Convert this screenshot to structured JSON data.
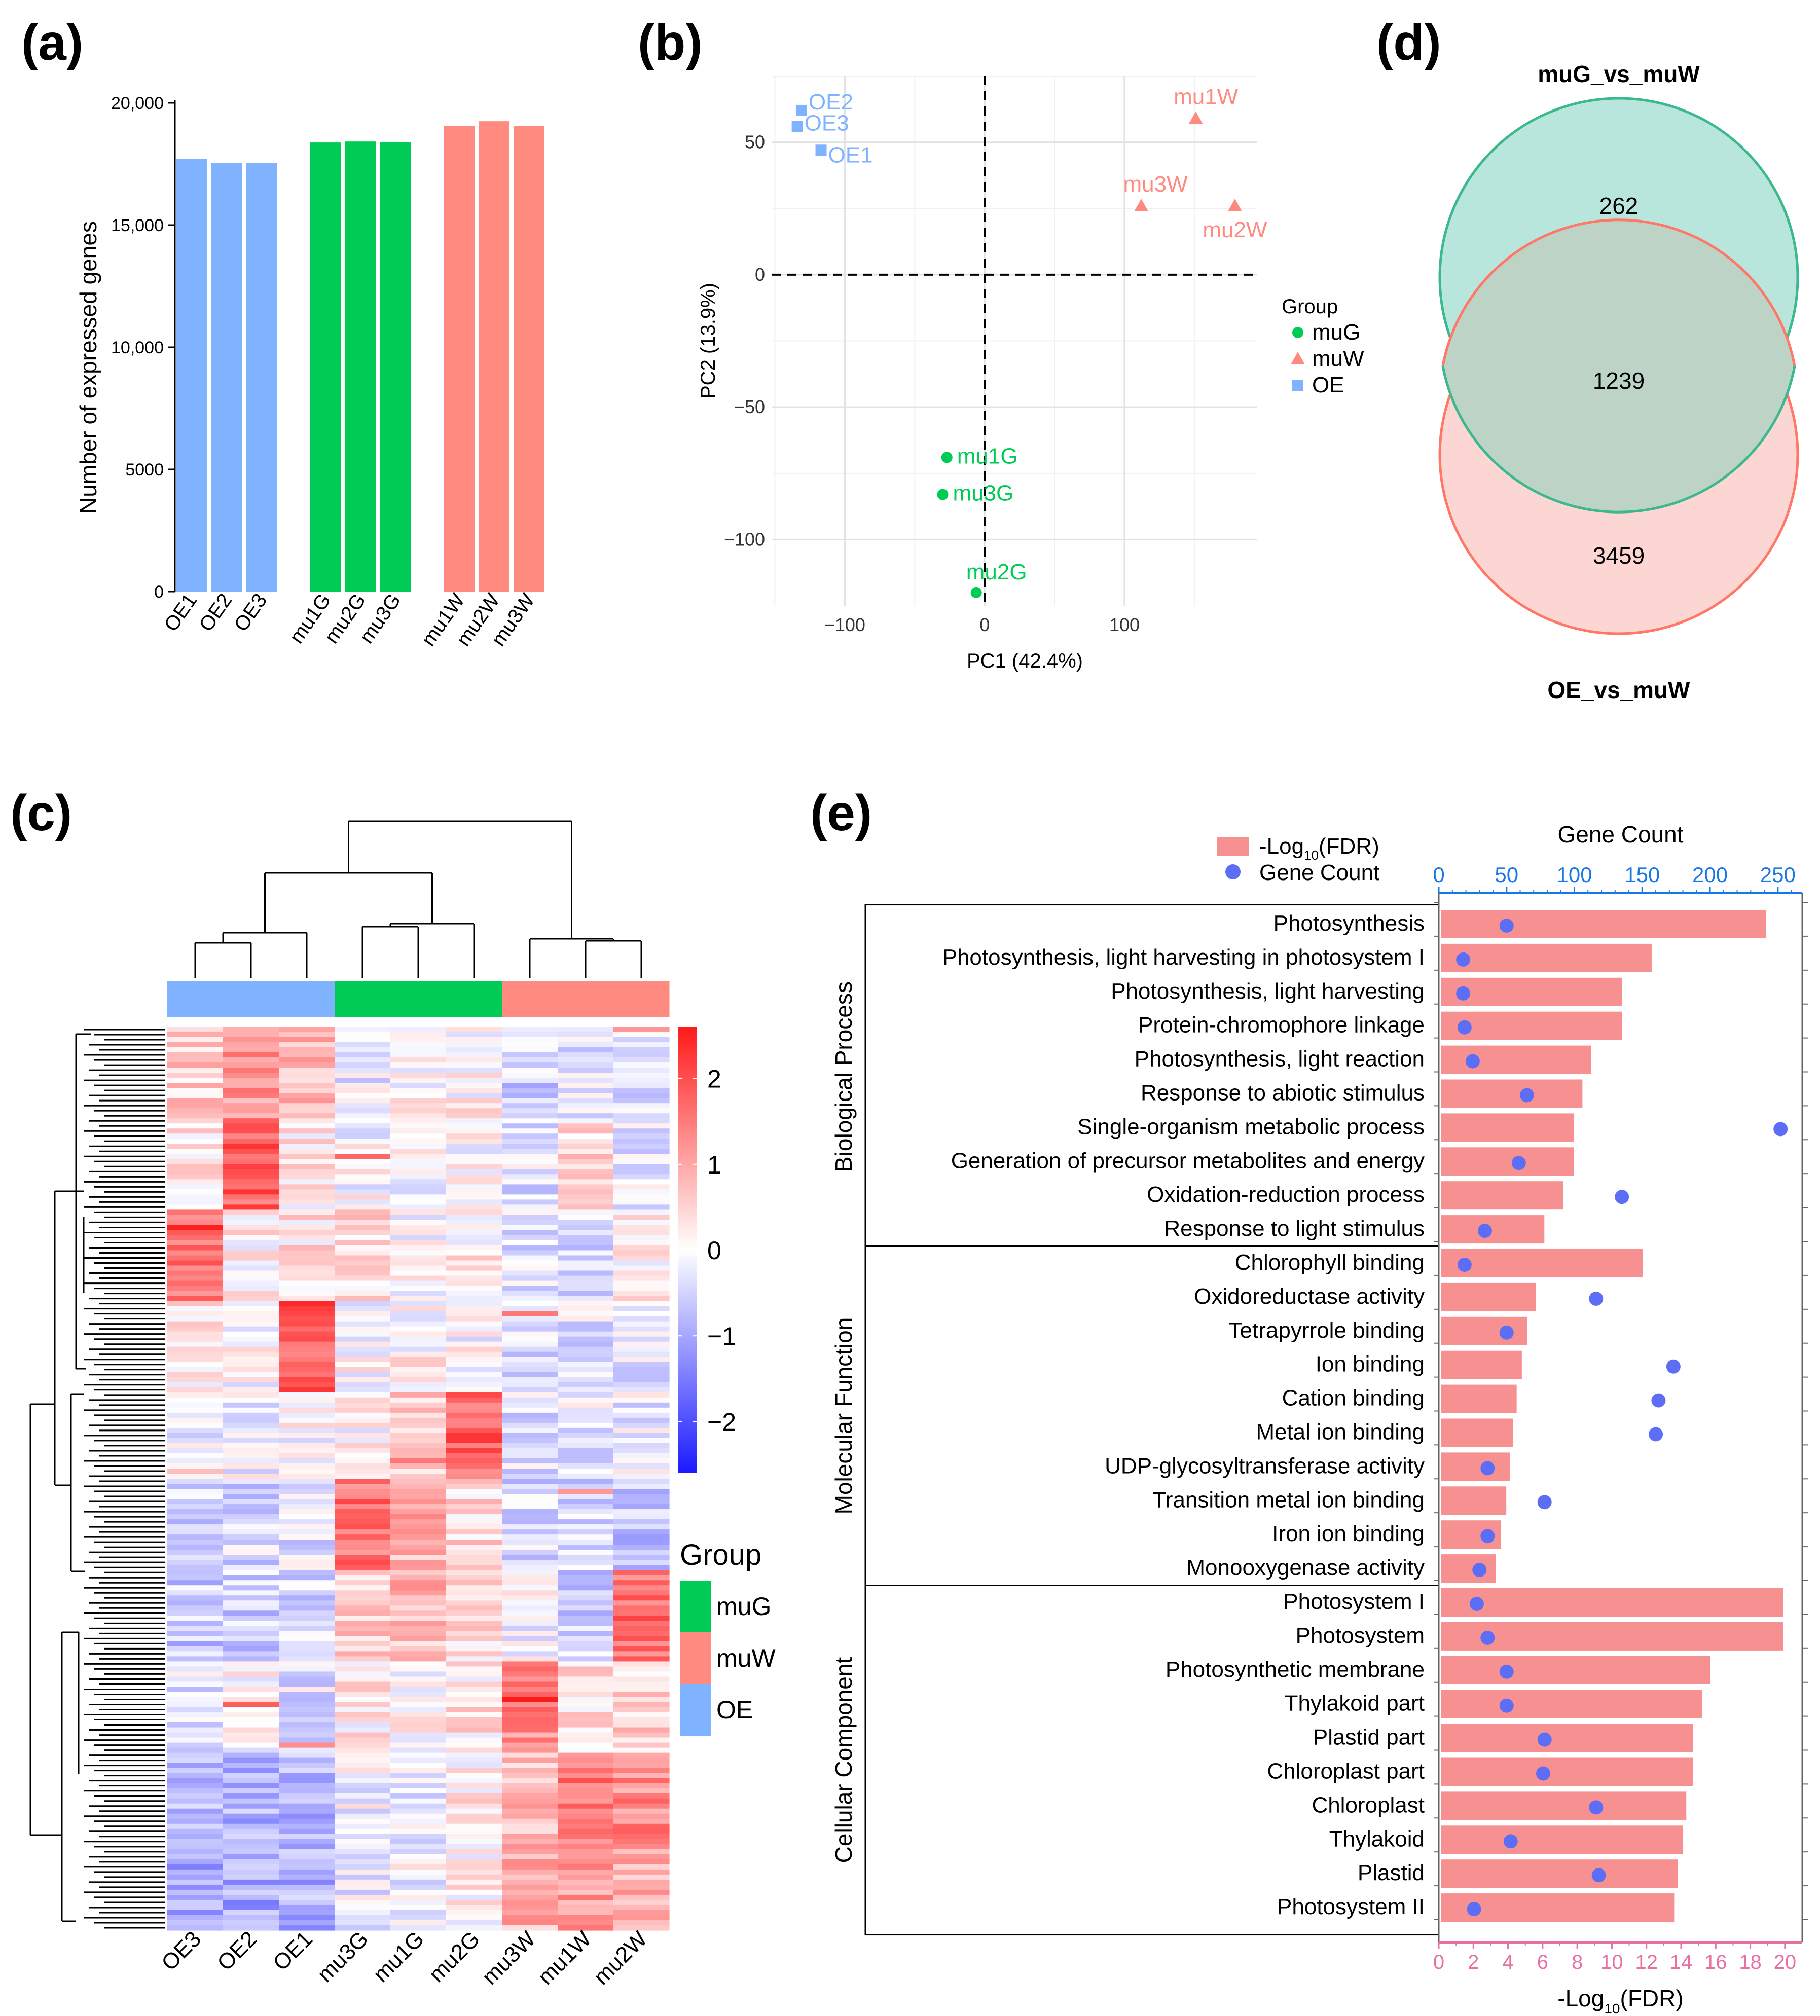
{
  "colors": {
    "OE": "#80b3ff",
    "muG": "#00cc55",
    "muW": "#ff8b80",
    "venn_top": "#b9e6dc",
    "venn_top_edge": "#3cb88e",
    "venn_bottom": "#fccfcb",
    "venn_bottom_edge": "#ff7766",
    "overlap": "#bcd3c6",
    "fdr_bar": "#f79191",
    "gene_dot": "#5b6ef5",
    "gene_axis": "#1a78e6",
    "fdr_axis": "#e870a0"
  },
  "panels": [
    "(a)",
    "(b)",
    "(c)",
    "(d)",
    "(e)"
  ],
  "chart_data": [
    {
      "panel": "(a)",
      "type": "bar",
      "ylabel": "Number of expressed genes",
      "xlabel": "",
      "ylim": [
        0,
        20000
      ],
      "ytick_values": [
        0,
        5000,
        10000,
        15000,
        20000
      ],
      "ytick_labels": [
        "0",
        "5000",
        "10,000",
        "15,000",
        "20,000"
      ],
      "categories": [
        "OE1",
        "OE2",
        "OE3",
        "mu1G",
        "mu2G",
        "mu3G",
        "mu1W",
        "mu2W",
        "mu3W"
      ],
      "groups": [
        "OE",
        "OE",
        "OE",
        "muG",
        "muG",
        "muG",
        "muW",
        "muW",
        "muW"
      ],
      "values": [
        17700,
        17550,
        17550,
        18380,
        18420,
        18400,
        19050,
        19250,
        19050
      ]
    },
    {
      "panel": "(b)",
      "type": "scatter",
      "xlabel": "PC1 (42.4%)",
      "ylabel": "PC2 (13.9%)",
      "xlim": [
        -152,
        195
      ],
      "ylim": [
        -125,
        75
      ],
      "xtick_values": [
        -100,
        0,
        100
      ],
      "xtick_labels": [
        "−100",
        "0",
        "100"
      ],
      "ytick_values": [
        -100,
        -50,
        0,
        50
      ],
      "ytick_labels": [
        "−100",
        "−50",
        "0",
        "50"
      ],
      "legend_title": "Group",
      "legend": [
        "muG",
        "muW",
        "OE"
      ],
      "points": [
        {
          "label": "OE2",
          "group": "OE",
          "x": -131,
          "y": 62
        },
        {
          "label": "OE3",
          "group": "OE",
          "x": -134,
          "y": 56
        },
        {
          "label": "OE1",
          "group": "OE",
          "x": -117,
          "y": 47
        },
        {
          "label": "mu1W",
          "group": "muW",
          "x": 151,
          "y": 59
        },
        {
          "label": "mu3W",
          "group": "muW",
          "x": 112,
          "y": 26
        },
        {
          "label": "mu2W",
          "group": "muW",
          "x": 179,
          "y": 26
        },
        {
          "label": "mu1G",
          "group": "muG",
          "x": -27,
          "y": -69
        },
        {
          "label": "mu3G",
          "group": "muG",
          "x": -30,
          "y": -83
        },
        {
          "label": "mu2G",
          "group": "muG",
          "x": -6,
          "y": -120
        }
      ]
    },
    {
      "panel": "(c)",
      "type": "heatmap",
      "columns": [
        "OE3",
        "OE2",
        "OE1",
        "mu3G",
        "mu1G",
        "mu2G",
        "mu3W",
        "mu1W",
        "mu2W"
      ],
      "column_groups": [
        "OE",
        "OE",
        "OE",
        "muG",
        "muG",
        "muG",
        "muW",
        "muW",
        "muW"
      ],
      "color_scale": {
        "min": -2.6,
        "max": 2.6,
        "low": "#1a1aff",
        "mid": "#ffffff",
        "high": "#ff1a1a"
      },
      "scale_ticks": [
        2,
        1,
        0,
        -1,
        -2
      ],
      "scale_tick_labels": [
        "2",
        "1",
        "0",
        "−1",
        "−2"
      ],
      "legend_title": "Group",
      "legend": [
        "muG",
        "muW",
        "OE"
      ],
      "profile_blocks": [
        [
          0.6,
          1.2,
          0.8,
          -0.2,
          0.0,
          0.1,
          -0.5,
          -0.3,
          -0.4
        ],
        [
          0.3,
          1.8,
          0.2,
          0.0,
          -0.1,
          0.0,
          -0.3,
          0.4,
          -0.2
        ],
        [
          1.6,
          0.2,
          0.3,
          0.4,
          0.0,
          0.2,
          -0.3,
          -0.5,
          0.2
        ],
        [
          0.2,
          0.0,
          1.9,
          0.0,
          0.1,
          0.0,
          -0.4,
          -0.3,
          -0.2
        ],
        [
          -0.2,
          -0.1,
          0.0,
          0.1,
          0.5,
          1.8,
          -0.3,
          -0.2,
          -0.2
        ],
        [
          -0.5,
          -0.4,
          -0.3,
          1.6,
          0.9,
          0.4,
          -0.4,
          -0.4,
          -0.6
        ],
        [
          -0.6,
          -0.5,
          -0.4,
          0.5,
          0.8,
          0.3,
          -0.1,
          -0.5,
          1.6
        ],
        [
          -0.3,
          0.1,
          -0.3,
          0.2,
          0.0,
          0.3,
          1.3,
          0.3,
          0.5
        ],
        [
          -0.8,
          -0.9,
          -0.8,
          -0.1,
          -0.3,
          0.2,
          0.7,
          1.5,
          1.3
        ],
        [
          -1.0,
          -1.0,
          -0.9,
          -0.2,
          -0.1,
          0.1,
          0.9,
          1.2,
          0.9
        ]
      ]
    },
    {
      "panel": "(d)",
      "type": "venn",
      "sets": [
        {
          "name": "muG_vs_muW",
          "only": 262
        },
        {
          "name": "OE_vs_muW",
          "only": 3459
        }
      ],
      "intersection": 1239
    },
    {
      "panel": "(e)",
      "type": "bar",
      "x_top_label": "Gene Count",
      "x_bottom_label": "-Log10(FDR)",
      "x_bottom_label_main": "-Log",
      "x_bottom_label_sub": "10",
      "x_bottom_label_tail": "(FDR)",
      "fdr_ticks": [
        0,
        2,
        4,
        6,
        8,
        10,
        12,
        14,
        16,
        18,
        20
      ],
      "fdr_range": [
        0,
        21
      ],
      "count_ticks": [
        0,
        50,
        100,
        150,
        200,
        250
      ],
      "count_range": [
        0,
        268
      ],
      "legend": {
        "bar_main": "-Log",
        "bar_sub": "10",
        "bar_tail": "(FDR)",
        "dot": "Gene Count"
      },
      "groups": [
        {
          "name": "Biological Process",
          "terms": [
            {
              "term": "Photosynthesis",
              "fdr": 18.9,
              "count": 50
            },
            {
              "term": "Photosynthesis, light harvesting in photosystem I",
              "fdr": 12.3,
              "count": 18
            },
            {
              "term": "Photosynthesis, light harvesting",
              "fdr": 10.6,
              "count": 18
            },
            {
              "term": "Protein-chromophore linkage",
              "fdr": 10.6,
              "count": 19
            },
            {
              "term": "Photosynthesis, light reaction",
              "fdr": 8.8,
              "count": 25
            },
            {
              "term": "Response to abiotic stimulus",
              "fdr": 8.3,
              "count": 65
            },
            {
              "term": "Single-organism metabolic process",
              "fdr": 7.8,
              "count": 252
            },
            {
              "term": "Generation of precursor metabolites and energy",
              "fdr": 7.8,
              "count": 59
            },
            {
              "term": "Oxidation-reduction process",
              "fdr": 7.2,
              "count": 135
            },
            {
              "term": "Response to light stimulus",
              "fdr": 6.1,
              "count": 34
            }
          ]
        },
        {
          "name": "Molecular Function",
          "terms": [
            {
              "term": "Chlorophyll binding",
              "fdr": 11.8,
              "count": 19
            },
            {
              "term": "Oxidoreductase activity",
              "fdr": 5.6,
              "count": 116
            },
            {
              "term": "Tetrapyrrole binding",
              "fdr": 5.1,
              "count": 50
            },
            {
              "term": "Ion binding",
              "fdr": 4.8,
              "count": 173
            },
            {
              "term": "Cation binding",
              "fdr": 4.5,
              "count": 162
            },
            {
              "term": "Metal ion binding",
              "fdr": 4.3,
              "count": 160
            },
            {
              "term": "UDP-glycosyltransferase activity",
              "fdr": 4.1,
              "count": 36
            },
            {
              "term": "Transition metal ion binding",
              "fdr": 3.9,
              "count": 78
            },
            {
              "term": "Iron ion binding",
              "fdr": 3.6,
              "count": 36
            },
            {
              "term": "Monooxygenase activity",
              "fdr": 3.3,
              "count": 30
            }
          ]
        },
        {
          "name": "Cellular Component",
          "terms": [
            {
              "term": "Photosystem I",
              "fdr": 19.9,
              "count": 28
            },
            {
              "term": "Photosystem",
              "fdr": 19.9,
              "count": 36
            },
            {
              "term": "Photosynthetic membrane",
              "fdr": 15.7,
              "count": 50
            },
            {
              "term": "Thylakoid part",
              "fdr": 15.2,
              "count": 50
            },
            {
              "term": "Plastid part",
              "fdr": 14.7,
              "count": 78
            },
            {
              "term": "Chloroplast part",
              "fdr": 14.7,
              "count": 77
            },
            {
              "term": "Chloroplast",
              "fdr": 14.3,
              "count": 116
            },
            {
              "term": "Thylakoid",
              "fdr": 14.1,
              "count": 53
            },
            {
              "term": "Plastid",
              "fdr": 13.8,
              "count": 118
            },
            {
              "term": "Photosystem II",
              "fdr": 13.6,
              "count": 26
            }
          ]
        }
      ]
    }
  ]
}
